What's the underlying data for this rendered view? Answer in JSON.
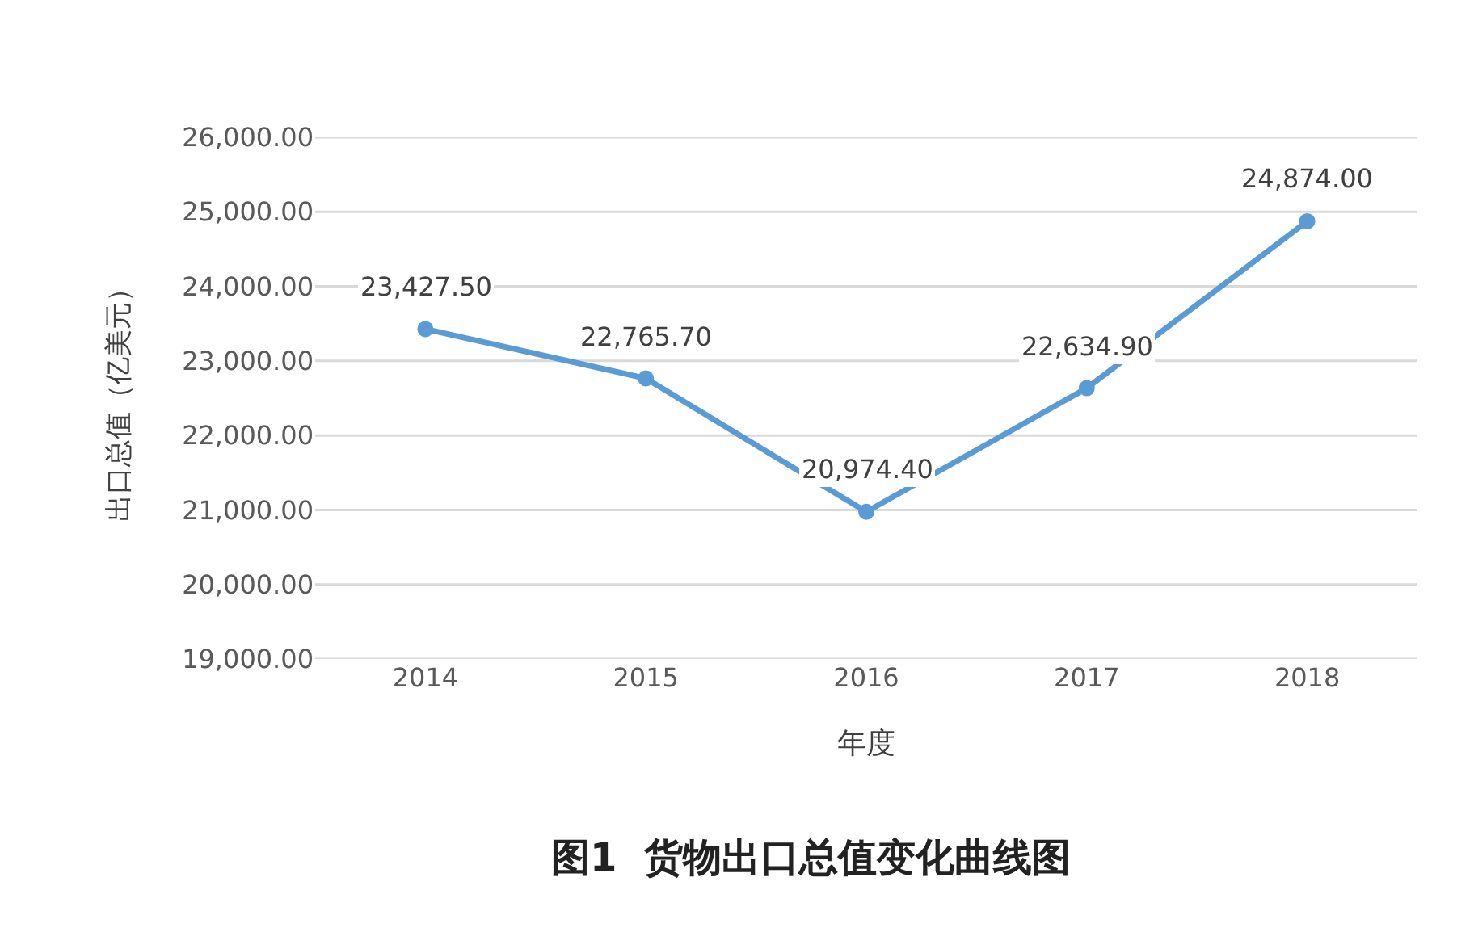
{
  "chart_data": {
    "type": "line",
    "xlabel": "年度",
    "ylabel": "出口总值（亿美元）",
    "annotations": [
      "图1  货物出口总值变化曲线图"
    ],
    "categories": [
      "2014",
      "2015",
      "2016",
      "2017",
      "2018"
    ],
    "series": [
      {
        "color": "#5b9bd5",
        "values": [
          23427.5,
          22765.7,
          20974.4,
          22634.9,
          24874.0
        ],
        "value_labels": [
          "23,427.50",
          "22,765.70",
          "20,974.40",
          "22,634.90",
          "24,874.00"
        ]
      }
    ],
    "ylim": [
      19000,
      26000
    ],
    "yticks": [
      {
        "value": 19000,
        "label": "19,000.00"
      },
      {
        "value": 20000,
        "label": "20,000.00"
      },
      {
        "value": 21000,
        "label": "21,000.00"
      },
      {
        "value": 22000,
        "label": "22,000.00"
      },
      {
        "value": 23000,
        "label": "23,000.00"
      },
      {
        "value": 24000,
        "label": "24,000.00"
      },
      {
        "value": 25000,
        "label": "25,000.00"
      },
      {
        "value": 26000,
        "label": "26,000.00"
      }
    ],
    "grid": "y",
    "legend": false,
    "marker": "circle",
    "line_style": "solid"
  }
}
